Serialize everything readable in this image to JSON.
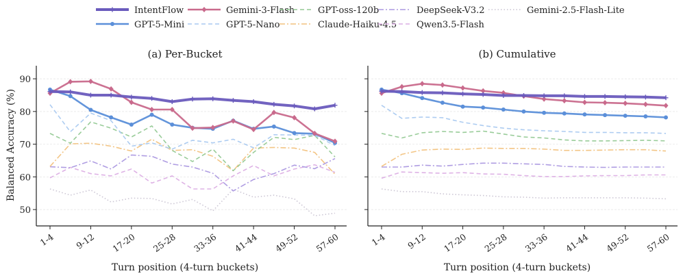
{
  "chart_data": {
    "type": "line",
    "ylabel": "Balanced Accuracy (%)",
    "xlabel": "Turn position (4-turn buckets)",
    "ylim": [
      45,
      94
    ],
    "yticks": [
      50,
      60,
      70,
      80,
      90
    ],
    "grid": "horizontal",
    "legend_placement": "top",
    "categories": [
      "1-4",
      "5-8",
      "9-12",
      "13-16",
      "17-20",
      "21-24",
      "25-28",
      "29-32",
      "33-36",
      "37-40",
      "41-44",
      "45-48",
      "49-52",
      "53-56",
      "57-60"
    ],
    "xtick_labels": [
      "1-4",
      "9-12",
      "17-20",
      "25-28",
      "33-36",
      "41-44",
      "49-52",
      "57-60"
    ],
    "legend": [
      {
        "name": "IntentFlow",
        "color": "#6a5bbd",
        "style": "solid-thick",
        "marker": "plus"
      },
      {
        "name": "GPT-5-Mini",
        "color": "#5b8fd9",
        "style": "solid",
        "marker": "circle"
      },
      {
        "name": "Gemini-3-Flash",
        "color": "#c96a8c",
        "style": "solid",
        "marker": "diamond"
      },
      {
        "name": "GPT-5-Nano",
        "color": "#a9c9f0",
        "style": "dashed",
        "marker": "none"
      },
      {
        "name": "GPT-oss-120b",
        "color": "#93c993",
        "style": "dashed",
        "marker": "none"
      },
      {
        "name": "Claude-Haiku-4.5",
        "color": "#f2c27e",
        "style": "dashdot",
        "marker": "none"
      },
      {
        "name": "DeepSeek-V3.2",
        "color": "#ab98e0",
        "style": "dashdot",
        "marker": "none"
      },
      {
        "name": "Qwen3.5-Flash",
        "color": "#dcaee4",
        "style": "dashed",
        "marker": "none"
      },
      {
        "name": "Gemini-2.5-Flash-Lite",
        "color": "#c9c3d2",
        "style": "dotted",
        "marker": "none"
      }
    ],
    "panels": [
      {
        "title": "(a) Per-Bucket",
        "series": [
          {
            "name": "Gemini-2.5-Flash-Lite",
            "values": [
              56.3,
              54.4,
              56.0,
              52.3,
              53.5,
              53.4,
              51.7,
              53.1,
              49.6,
              56.2,
              53.8,
              54.4,
              53.3,
              48.1,
              48.9
            ]
          },
          {
            "name": "Qwen3.5-Flash",
            "values": [
              59.7,
              62.9,
              61.0,
              60.3,
              62.4,
              58.1,
              60.3,
              56.3,
              56.3,
              60.3,
              63.5,
              60.3,
              62.4,
              63.7,
              61.4
            ]
          },
          {
            "name": "DeepSeek-V3.2",
            "values": [
              63.1,
              62.8,
              64.9,
              62.4,
              66.7,
              66.3,
              63.9,
              63.0,
              61.1,
              55.7,
              59.2,
              61.0,
              63.6,
              62.5,
              65.6
            ]
          },
          {
            "name": "Claude-Haiku-4.5",
            "values": [
              63.2,
              70.1,
              70.3,
              69.4,
              67.9,
              71.5,
              68.1,
              68.3,
              66.3,
              61.9,
              68.8,
              69.0,
              68.8,
              67.5,
              60.8
            ]
          },
          {
            "name": "GPT-oss-120b",
            "values": [
              73.3,
              70.3,
              76.8,
              74.9,
              72.2,
              75.6,
              68.1,
              64.7,
              68.5,
              61.9,
              67.5,
              72.1,
              71.4,
              72.7,
              66.1
            ]
          },
          {
            "name": "GPT-5-Nano",
            "values": [
              82.1,
              73.8,
              79.5,
              77.2,
              69.4,
              70.4,
              68.5,
              71.2,
              70.4,
              71.5,
              68.9,
              72.9,
              72.8,
              72.7,
              69.6
            ]
          },
          {
            "name": "GPT-5-Mini",
            "values": [
              86.7,
              84.7,
              80.5,
              78.2,
              76.0,
              79.0,
              76.0,
              75.0,
              74.7,
              77.2,
              74.7,
              75.4,
              73.4,
              73.2,
              70.4
            ]
          },
          {
            "name": "Gemini-3-Flash",
            "values": [
              85.6,
              89.1,
              89.2,
              86.9,
              82.8,
              80.6,
              80.6,
              74.9,
              75.1,
              77.1,
              74.5,
              79.7,
              78.1,
              73.3,
              70.9
            ]
          },
          {
            "name": "IntentFlow",
            "values": [
              86.1,
              86.0,
              85.0,
              85.0,
              84.4,
              84.0,
              83.0,
              83.8,
              83.9,
              83.4,
              83.0,
              82.2,
              81.7,
              80.8,
              81.9
            ]
          }
        ]
      },
      {
        "title": "(b) Cumulative",
        "series": [
          {
            "name": "Gemini-2.5-Flash-Lite",
            "values": [
              56.3,
              55.5,
              55.5,
              54.8,
              54.5,
              54.3,
              53.9,
              53.8,
              53.5,
              53.6,
              53.6,
              53.6,
              53.6,
              53.5,
              53.3
            ]
          },
          {
            "name": "Qwen3.5-Flash",
            "values": [
              59.6,
              61.5,
              61.3,
              61.1,
              61.3,
              60.9,
              60.8,
              60.4,
              60.1,
              60.1,
              60.3,
              60.4,
              60.4,
              60.6,
              60.6
            ]
          },
          {
            "name": "DeepSeek-V3.2",
            "values": [
              63.0,
              63.0,
              63.6,
              63.3,
              63.8,
              64.2,
              64.2,
              64.0,
              63.8,
              63.2,
              63.0,
              62.9,
              63.0,
              63.0,
              63.0
            ]
          },
          {
            "name": "Claude-Haiku-4.5",
            "values": [
              63.2,
              66.9,
              68.2,
              68.5,
              68.4,
              68.8,
              68.7,
              68.7,
              68.5,
              68.1,
              68.1,
              68.2,
              68.3,
              68.3,
              67.9
            ]
          },
          {
            "name": "GPT-oss-120b",
            "values": [
              73.3,
              71.9,
              73.5,
              73.9,
              73.6,
              74.0,
              73.1,
              72.2,
              71.9,
              71.3,
              71.0,
              71.0,
              71.1,
              71.2,
              71.0
            ]
          },
          {
            "name": "GPT-5-Nano",
            "values": [
              81.9,
              77.9,
              78.3,
              78.1,
              76.7,
              75.7,
              74.9,
              74.4,
              74.1,
              73.9,
              73.6,
              73.6,
              73.5,
              73.5,
              73.3
            ]
          },
          {
            "name": "GPT-5-Mini",
            "values": [
              86.7,
              85.6,
              84.1,
              82.7,
              81.5,
              81.2,
              80.6,
              80.0,
              79.6,
              79.4,
              79.1,
              78.9,
              78.7,
              78.5,
              78.2
            ]
          },
          {
            "name": "Gemini-3-Flash",
            "values": [
              85.6,
              87.6,
              88.5,
              88.1,
              87.2,
              86.3,
              85.7,
              84.7,
              83.8,
              83.3,
              82.8,
              82.7,
              82.5,
              82.2,
              81.8
            ]
          },
          {
            "name": "IntentFlow",
            "values": [
              86.2,
              86.1,
              85.8,
              85.7,
              85.4,
              85.2,
              84.9,
              84.9,
              84.8,
              84.8,
              84.6,
              84.6,
              84.5,
              84.4,
              84.2
            ]
          }
        ]
      }
    ]
  }
}
